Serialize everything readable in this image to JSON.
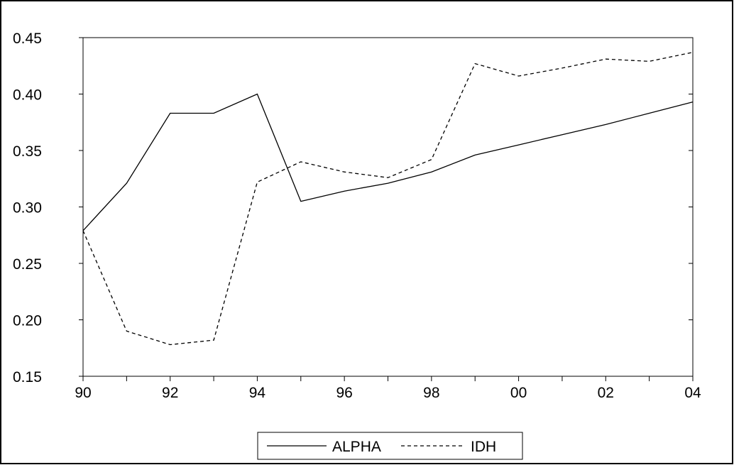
{
  "chart_data": {
    "type": "line",
    "title": "",
    "xlabel": "",
    "ylabel": "",
    "x": [
      1990,
      1991,
      1992,
      1993,
      1994,
      1995,
      1996,
      1997,
      1998,
      1999,
      2000,
      2001,
      2002,
      2003,
      2004
    ],
    "x_tick_values": [
      1990,
      1992,
      1994,
      1996,
      1998,
      2000,
      2002,
      2004
    ],
    "x_tick_labels": [
      "90",
      "92",
      "94",
      "96",
      "98",
      "00",
      "02",
      "04"
    ],
    "xlim": [
      1990,
      2004
    ],
    "ylim": [
      0.15,
      0.45
    ],
    "y_tick_values": [
      0.15,
      0.2,
      0.25,
      0.3,
      0.35,
      0.4,
      0.45
    ],
    "y_tick_labels": [
      "0.15",
      "0.20",
      "0.25",
      "0.30",
      "0.35",
      "0.40",
      "0.45"
    ],
    "grid": false,
    "legend_position": "bottom-center",
    "series": [
      {
        "name": "ALPHA",
        "style": "solid",
        "color": "#000000",
        "values": [
          0.279,
          0.321,
          0.383,
          0.383,
          0.4,
          0.305,
          0.314,
          0.321,
          0.331,
          0.346,
          0.355,
          0.364,
          0.373,
          0.383,
          0.393
        ]
      },
      {
        "name": "IDH",
        "style": "dashed",
        "color": "#000000",
        "values": [
          0.279,
          0.19,
          0.178,
          0.182,
          0.322,
          0.34,
          0.331,
          0.326,
          0.342,
          0.427,
          0.416,
          0.423,
          0.431,
          0.429,
          0.437
        ]
      }
    ]
  }
}
